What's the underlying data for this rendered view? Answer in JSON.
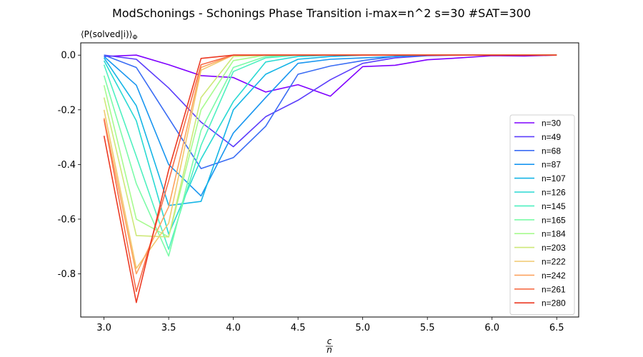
{
  "chart_data": {
    "type": "line",
    "title": "ModSchonings - Schonings Phase Transition  i-max=n^2 s=30 #SAT=300",
    "ylabel": "⟨P(solved|i)⟩",
    "ylabel_sub": "Φ",
    "xlabel_num": "c",
    "xlabel_den": "n",
    "xlim": [
      2.82,
      6.67
    ],
    "ylim": [
      -0.958,
      0.045
    ],
    "x_ticks": [
      3.0,
      3.5,
      4.0,
      4.5,
      5.0,
      5.5,
      6.0,
      6.5
    ],
    "y_ticks": [
      0.0,
      -0.2,
      -0.4,
      -0.6,
      -0.8
    ],
    "x": [
      3.0,
      3.25,
      3.5,
      3.75,
      4.0,
      4.25,
      4.5,
      4.75,
      5.0,
      5.25,
      5.5,
      5.75,
      6.0,
      6.25,
      6.5
    ],
    "legend_position": "lower-right",
    "series": [
      {
        "name": "n=30",
        "color": "#7f00ff",
        "values": [
          -0.005,
          0.0,
          -0.035,
          -0.075,
          -0.082,
          -0.135,
          -0.108,
          -0.15,
          -0.042,
          -0.037,
          -0.017,
          -0.01,
          -0.002,
          -0.003,
          0.0
        ]
      },
      {
        "name": "n=49",
        "color": "#5b3dfb",
        "values": [
          0.0,
          -0.015,
          -0.12,
          -0.245,
          -0.335,
          -0.225,
          -0.165,
          -0.09,
          -0.03,
          -0.01,
          -0.002,
          0.0,
          0.0,
          0.0,
          0.0
        ]
      },
      {
        "name": "n=68",
        "color": "#3a6cf4",
        "values": [
          0.0,
          -0.045,
          -0.23,
          -0.415,
          -0.375,
          -0.26,
          -0.07,
          -0.04,
          -0.02,
          -0.005,
          0.0,
          0.0,
          0.0,
          0.0,
          0.0
        ]
      },
      {
        "name": "n=87",
        "color": "#1996f0",
        "values": [
          -0.005,
          -0.11,
          -0.4,
          -0.515,
          -0.285,
          -0.155,
          -0.03,
          -0.015,
          -0.01,
          -0.005,
          0.0,
          0.0,
          0.0,
          0.0,
          0.0
        ]
      },
      {
        "name": "n=107",
        "color": "#15b5e6",
        "values": [
          -0.01,
          -0.185,
          -0.55,
          -0.535,
          -0.2,
          -0.07,
          -0.015,
          -0.005,
          0.0,
          0.0,
          0.0,
          0.0,
          0.0,
          0.0,
          0.0
        ]
      },
      {
        "name": "n=126",
        "color": "#2ad9d3",
        "values": [
          -0.02,
          -0.24,
          -0.655,
          -0.38,
          -0.17,
          -0.025,
          -0.005,
          0.0,
          0.0,
          0.0,
          0.0,
          0.0,
          0.0,
          0.0,
          0.0
        ]
      },
      {
        "name": "n=145",
        "color": "#4ef0c0",
        "values": [
          -0.035,
          -0.37,
          -0.71,
          -0.33,
          -0.06,
          -0.01,
          0.0,
          0.0,
          0.0,
          0.0,
          0.0,
          0.0,
          0.0,
          0.0,
          0.0
        ]
      },
      {
        "name": "n=165",
        "color": "#7cfba8",
        "values": [
          -0.075,
          -0.47,
          -0.735,
          -0.275,
          -0.045,
          -0.005,
          0.0,
          0.0,
          0.0,
          0.0,
          0.0,
          0.0,
          0.0,
          0.0,
          0.0
        ]
      },
      {
        "name": "n=184",
        "color": "#a7fb8f",
        "values": [
          -0.11,
          -0.6,
          -0.665,
          -0.2,
          -0.02,
          0.0,
          0.0,
          0.0,
          0.0,
          0.0,
          0.0,
          0.0,
          0.0,
          0.0,
          0.0
        ]
      },
      {
        "name": "n=203",
        "color": "#cee879",
        "values": [
          -0.155,
          -0.66,
          -0.665,
          -0.155,
          -0.005,
          0.0,
          0.0,
          0.0,
          0.0,
          0.0,
          0.0,
          0.0,
          0.0,
          0.0,
          0.0
        ]
      },
      {
        "name": "n=222",
        "color": "#f1c96e",
        "values": [
          -0.2,
          -0.78,
          -0.615,
          -0.055,
          0.0,
          0.0,
          0.0,
          0.0,
          0.0,
          0.0,
          0.0,
          0.0,
          0.0,
          0.0,
          0.0
        ]
      },
      {
        "name": "n=242",
        "color": "#fda35f",
        "values": [
          -0.23,
          -0.8,
          -0.555,
          -0.045,
          0.0,
          0.0,
          0.0,
          0.0,
          0.0,
          0.0,
          0.0,
          0.0,
          0.0,
          0.0,
          0.0
        ]
      },
      {
        "name": "n=261",
        "color": "#f76d48",
        "values": [
          -0.235,
          -0.865,
          -0.46,
          -0.035,
          0.0,
          0.0,
          0.0,
          0.0,
          0.0,
          0.0,
          0.0,
          0.0,
          0.0,
          0.0,
          0.0
        ]
      },
      {
        "name": "n=280",
        "color": "#ec3a24",
        "values": [
          -0.295,
          -0.905,
          -0.42,
          -0.012,
          0.0,
          0.0,
          0.0,
          0.0,
          0.0,
          0.0,
          0.0,
          0.0,
          0.0,
          0.0,
          0.0
        ]
      }
    ]
  }
}
